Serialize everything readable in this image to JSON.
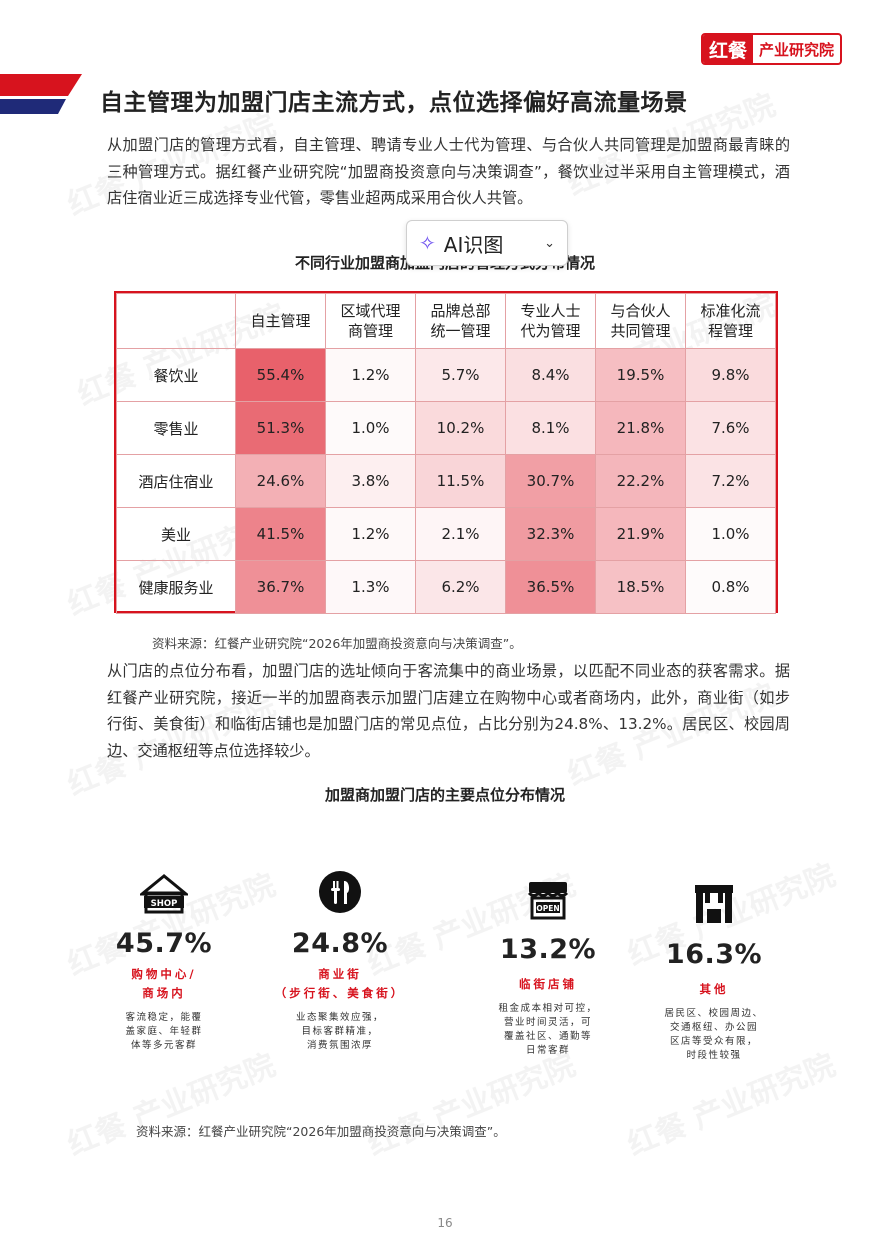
{
  "brand": {
    "logo": "红餐",
    "name": "产业研究院"
  },
  "title": "自主管理为加盟门店主流方式，点位选择偏好高流量场景",
  "paragraph1": "从加盟门店的管理方式看，自主管理、聘请专业人士代为管理、与合伙人共同管理是加盟商最青睐的三种管理方式。据红餐产业研究院“加盟商投资意向与决策调查”，餐饮业过半采用自主管理模式，酒店住宿业近三成选择专业代管，零售业超两成采用合伙人共管。",
  "ai_button": {
    "label": "AI识图"
  },
  "table": {
    "title": "不同行业加盟商加盟门店的管理方式分布情况",
    "headers": [
      "",
      "自主管理",
      "区域代理商管理",
      "品牌总部统一管理",
      "专业人士代为管理",
      "与合伙人共同管理",
      "标准化流程管理"
    ],
    "header_lines": [
      [
        ""
      ],
      [
        "自主管理"
      ],
      [
        "区域代理",
        "商管理"
      ],
      [
        "品牌总部",
        "统一管理"
      ],
      [
        "专业人士",
        "代为管理"
      ],
      [
        "与合伙人",
        "共同管理"
      ],
      [
        "标准化流",
        "程管理"
      ]
    ],
    "rows": [
      {
        "label": "餐饮业",
        "values": [
          "55.4%",
          "1.2%",
          "5.7%",
          "8.4%",
          "19.5%",
          "9.8%"
        ],
        "nums": [
          55.4,
          1.2,
          5.7,
          8.4,
          19.5,
          9.8
        ]
      },
      {
        "label": "零售业",
        "values": [
          "51.3%",
          "1.0%",
          "10.2%",
          "8.1%",
          "21.8%",
          "7.6%"
        ],
        "nums": [
          51.3,
          1.0,
          10.2,
          8.1,
          21.8,
          7.6
        ]
      },
      {
        "label": "酒店住宿业",
        "values": [
          "24.6%",
          "3.8%",
          "11.5%",
          "30.7%",
          "22.2%",
          "7.2%"
        ],
        "nums": [
          24.6,
          3.8,
          11.5,
          30.7,
          22.2,
          7.2
        ]
      },
      {
        "label": "美业",
        "values": [
          "41.5%",
          "1.2%",
          "2.1%",
          "32.3%",
          "21.9%",
          "1.0%"
        ],
        "nums": [
          41.5,
          1.2,
          2.1,
          32.3,
          21.9,
          1.0
        ]
      },
      {
        "label": "健康服务业",
        "values": [
          "36.7%",
          "1.3%",
          "6.2%",
          "36.5%",
          "18.5%",
          "0.8%"
        ],
        "nums": [
          36.7,
          1.3,
          6.2,
          36.5,
          18.5,
          0.8
        ]
      }
    ]
  },
  "source1": "资料来源：红餐产业研究院“2026年加盟商投资意向与决策调查”。",
  "paragraph2": "从门店的点位分布看，加盟门店的选址倾向于客流集中的商业场景，以匹配不同业态的获客需求。据红餐产业研究院，接近一半的加盟商表示加盟门店建立在购物中心或者商场内，此外，商业街（如步行街、美食街）和临街店铺也是加盟门店的常见点位，占比分别为24.8%、13.2%。居民区、校园周边、交通枢纽等点位选择较少。",
  "locations": {
    "title": "加盟商加盟门店的主要点位分布情况",
    "items": [
      {
        "icon": "shop-icon",
        "icon_text": "SHOP",
        "pct": "45.7%",
        "label_lines": [
          "购物中心/",
          "商场内"
        ],
        "desc_lines": [
          "客流稳定，能覆",
          "盖家庭、年轻群",
          "体等多元客群"
        ]
      },
      {
        "icon": "dining-icon",
        "icon_text": "",
        "pct": "24.8%",
        "label_lines": [
          "商业街",
          "（步行街、美食街）"
        ],
        "desc_lines": [
          "业态聚集效应强，",
          "目标客群精准，",
          "消费氛围浓厚"
        ]
      },
      {
        "icon": "open-store-icon",
        "icon_text": "OPEN",
        "pct": "13.2%",
        "label_lines": [
          "临街店铺"
        ],
        "desc_lines": [
          "租金成本相对可控，",
          "营业时间灵活，可",
          "覆盖社区、通勤等",
          "日常客群"
        ]
      },
      {
        "icon": "storefront-icon",
        "icon_text": "",
        "pct": "16.3%",
        "label_lines": [
          "其他"
        ],
        "desc_lines": [
          "居民区、校园周边、",
          "交通枢纽、办公园",
          "区店等受众有限，",
          "时段性较强"
        ]
      }
    ]
  },
  "source2": "资料来源：红餐产业研究院“2026年加盟商投资意向与决策调查”。",
  "page_number": "16",
  "colors": {
    "accent": "#d7131e",
    "navy": "#1f2a78",
    "heat_max": "#e8616b"
  },
  "watermark": "红餐 产业研究院"
}
